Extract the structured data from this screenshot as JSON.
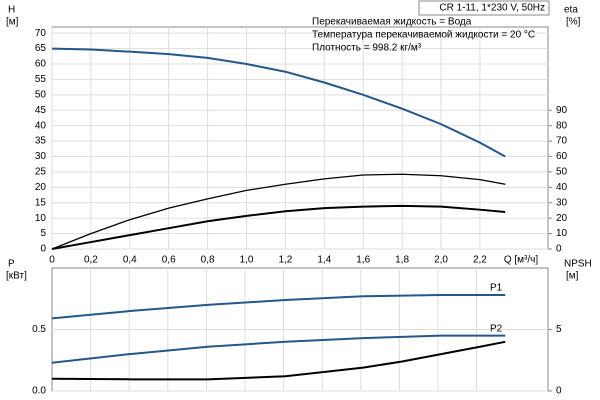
{
  "chart_data": [
    {
      "type": "line",
      "ylabel": [
        "H",
        "[м]"
      ],
      "y2label": [
        "eta",
        "[%]"
      ],
      "xlabel": "Q [м³/ч]",
      "annotations": {
        "box": "CR 1-11, 1*230 V, 50Hz",
        "lines": [
          "Перекачиваемая жидкость = Вода",
          "Температура перекачиваемой жидкости = 20 °C",
          "Плотность = 998.2 кг/м³"
        ]
      },
      "x": [
        0,
        0.2,
        0.4,
        0.6,
        0.8,
        1.0,
        1.2,
        1.4,
        1.6,
        1.8,
        2.0,
        2.2,
        2.33
      ],
      "xlim": [
        0,
        2.55
      ],
      "xticks": [
        0,
        {
          "value": 0.2,
          "label": "0,2"
        },
        {
          "value": 0.4,
          "label": "0,4"
        },
        {
          "value": 0.6,
          "label": "0,6"
        },
        {
          "value": 0.8,
          "label": "0,8"
        },
        {
          "value": 1.0,
          "label": "1,0"
        },
        {
          "value": 1.2,
          "label": "1,2"
        },
        {
          "value": 1.4,
          "label": "1,4"
        },
        {
          "value": 1.6,
          "label": "1,6"
        },
        {
          "value": 1.8,
          "label": "1,8"
        },
        {
          "value": 2.0,
          "label": "2,0"
        },
        {
          "value": 2.2,
          "label": "2,2"
        }
      ],
      "ylim": [
        0,
        72
      ],
      "yticks": [
        0,
        5,
        10,
        15,
        20,
        25,
        30,
        35,
        40,
        45,
        50,
        55,
        60,
        65,
        70
      ],
      "y2lim": [
        0,
        144
      ],
      "y2ticks": [
        0,
        10,
        20,
        30,
        40,
        50,
        60,
        70,
        80,
        90
      ],
      "grid": true,
      "series": [
        {
          "color": "#24578a",
          "values": [
            65,
            64.7,
            64,
            63.2,
            62,
            60,
            57.5,
            54,
            50,
            45.5,
            40.5,
            34.5,
            30
          ]
        },
        {
          "color": "#000000",
          "axis": "y2",
          "values": [
            0,
            10,
            19,
            26.5,
            32.5,
            38,
            42,
            45.5,
            48,
            48.5,
            47.5,
            45,
            42
          ]
        },
        {
          "color": "#000000",
          "axis": "y2",
          "values": [
            0,
            4.5,
            9,
            13.5,
            18,
            21.5,
            24.5,
            26.5,
            27.5,
            28,
            27.5,
            25.5,
            24
          ]
        }
      ]
    },
    {
      "type": "line",
      "ylabel": [
        "P",
        "[кВт]"
      ],
      "y2label": [
        "NPSH",
        "[м]"
      ],
      "x": [
        0,
        0.4,
        0.8,
        1.2,
        1.6,
        1.8,
        2.0,
        2.2,
        2.33
      ],
      "xlim": [
        0,
        2.55
      ],
      "ylim": [
        0,
        1
      ],
      "yticks": [
        {
          "value": 0,
          "label": "0.0"
        },
        0.5
      ],
      "y2lim": [
        0,
        10
      ],
      "y2ticks": [
        0,
        5
      ],
      "grid": true,
      "series": [
        {
          "name": "P1",
          "color": "#24578a",
          "values": [
            0.59,
            0.65,
            0.7,
            0.74,
            0.77,
            0.775,
            0.78,
            0.78,
            0.78
          ]
        },
        {
          "name": "P2",
          "color": "#24578a",
          "values": [
            0.23,
            0.3,
            0.36,
            0.4,
            0.43,
            0.44,
            0.45,
            0.45,
            0.45
          ]
        },
        {
          "color": "#000000",
          "axis": "y2",
          "values": [
            1.0,
            0.95,
            0.95,
            1.2,
            1.9,
            2.4,
            3.0,
            3.6,
            4.0
          ]
        }
      ]
    }
  ]
}
